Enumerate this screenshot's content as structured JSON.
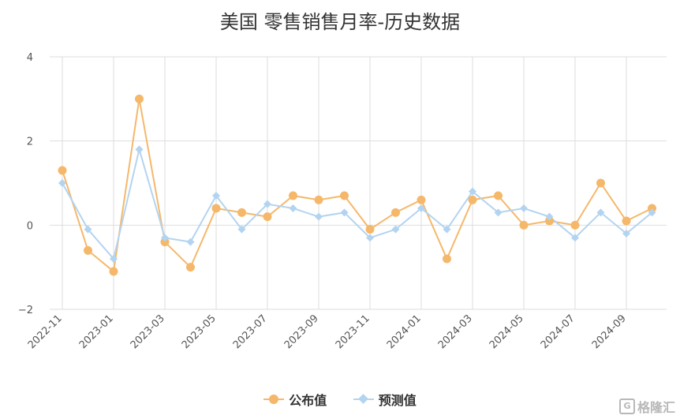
{
  "chart_data": {
    "type": "line",
    "title": "美国 零售销售月率-历史数据",
    "x": [
      "2022-11",
      "2022-12",
      "2023-01",
      "2023-02",
      "2023-03",
      "2023-04",
      "2023-05",
      "2023-06",
      "2023-07",
      "2023-08",
      "2023-09",
      "2023-10",
      "2023-11",
      "2023-12",
      "2024-01",
      "2024-02",
      "2024-03",
      "2024-04",
      "2024-05",
      "2024-06",
      "2024-07",
      "2024-08",
      "2024-09",
      "2024-10"
    ],
    "x_tick_labels": [
      "2022-11",
      "2023-01",
      "2023-03",
      "2023-05",
      "2023-07",
      "2023-09",
      "2023-11",
      "2024-01",
      "2024-03",
      "2024-05",
      "2024-07",
      "2024-09"
    ],
    "y_tick_labels": [
      "4",
      "2",
      "0",
      "−2"
    ],
    "ylim": [
      -2,
      4
    ],
    "grid": true,
    "legend_position": "bottom",
    "series": [
      {
        "name": "公布值",
        "color": "#f5b86a",
        "marker": "circle",
        "values": [
          1.3,
          -0.6,
          -1.1,
          3.0,
          -0.4,
          -1.0,
          0.4,
          0.3,
          0.2,
          0.7,
          0.6,
          0.7,
          -0.1,
          0.3,
          0.6,
          -0.8,
          0.6,
          0.7,
          0.0,
          0.1,
          0.0,
          1.0,
          0.1,
          0.4
        ]
      },
      {
        "name": "预测值",
        "color": "#b3d4f0",
        "marker": "diamond",
        "values": [
          1.0,
          -0.1,
          -0.8,
          1.8,
          -0.3,
          -0.4,
          0.7,
          -0.1,
          0.5,
          0.4,
          0.2,
          0.3,
          -0.3,
          -0.1,
          0.4,
          -0.1,
          0.8,
          0.3,
          0.4,
          0.2,
          -0.3,
          0.3,
          -0.2,
          0.3
        ]
      }
    ]
  },
  "watermark": {
    "text": "格隆汇"
  }
}
